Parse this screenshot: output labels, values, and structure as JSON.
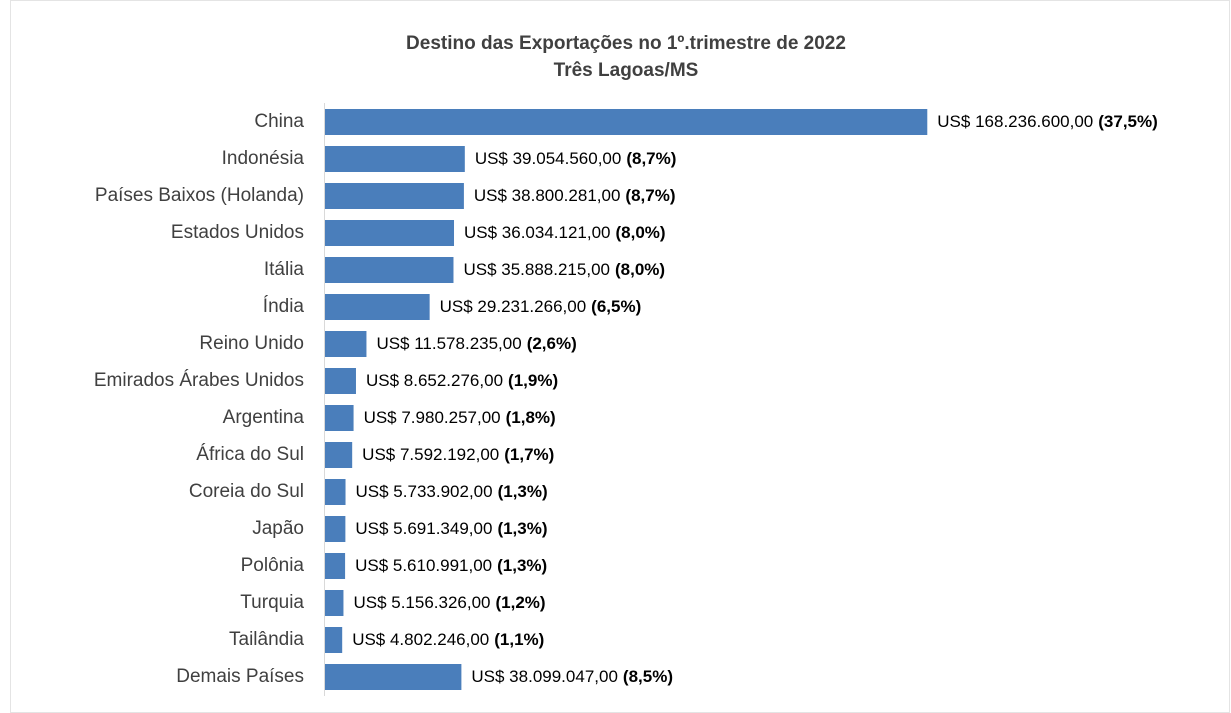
{
  "chart_data": {
    "type": "barh",
    "title": "Destino das Exportações no 1º.trimestre de 2022",
    "subtitle": "Três Lagoas/MS",
    "categories": [
      "China",
      "Indonésia",
      "Países Baixos (Holanda)",
      "Estados Unidos",
      "Itália",
      "Índia",
      "Reino Unido",
      "Emirados Árabes Unidos",
      "Argentina",
      "África do Sul",
      "Coreia do Sul",
      "Japão",
      "Polônia",
      "Turquia",
      "Tailândia",
      "Demais Países"
    ],
    "values": [
      168236600,
      39054560,
      38800281,
      36034121,
      35888215,
      29231266,
      11578235,
      8652276,
      7980257,
      7592192,
      5733902,
      5691349,
      5610991,
      5156326,
      4802246,
      38099047
    ],
    "value_labels": [
      "US$ 168.236.600,00",
      "US$ 39.054.560,00",
      "US$ 38.800.281,00",
      "US$ 36.034.121,00",
      "US$ 35.888.215,00",
      "US$ 29.231.266,00",
      "US$ 11.578.235,00",
      "US$ 8.652.276,00",
      "US$ 7.980.257,00",
      "US$ 7.592.192,00",
      "US$ 5.733.902,00",
      "US$ 5.691.349,00",
      "US$ 5.610.991,00",
      "US$ 5.156.326,00",
      "US$ 4.802.246,00",
      "US$ 38.099.047,00"
    ],
    "share_labels": [
      "(37,5%)",
      "(8,7%)",
      "(8,7%)",
      "(8,0%)",
      "(8,0%)",
      "(6,5%)",
      "(2,6%)",
      "(1,9%)",
      "(1,8%)",
      "(1,7%)",
      "(1,3%)",
      "(1,3%)",
      "(1,3%)",
      "(1,2%)",
      "(1,1%)",
      "(8,5%)"
    ],
    "color": "#4a7ebb",
    "xlim": [
      0,
      200000000
    ]
  }
}
